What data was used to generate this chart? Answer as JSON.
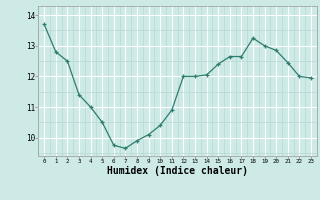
{
  "x": [
    0,
    1,
    2,
    3,
    4,
    5,
    6,
    7,
    8,
    9,
    10,
    11,
    12,
    13,
    14,
    15,
    16,
    17,
    18,
    19,
    20,
    21,
    22,
    23
  ],
  "y": [
    13.7,
    12.8,
    12.5,
    11.4,
    11.0,
    10.5,
    9.75,
    9.65,
    9.9,
    10.1,
    10.4,
    10.9,
    12.0,
    12.0,
    12.05,
    12.4,
    12.65,
    12.65,
    13.25,
    13.0,
    12.85,
    12.45,
    12.0,
    11.95
  ],
  "line_color": "#2e7d6e",
  "bg_color": "#cdeae7",
  "grid_major_color": "#ffffff",
  "grid_minor_color": "#b8d8d5",
  "xlabel": "Humidex (Indice chaleur)",
  "xlabel_fontsize": 7,
  "ylabel_ticks": [
    10,
    11,
    12,
    13,
    14
  ],
  "xlim": [
    -0.5,
    23.5
  ],
  "ylim": [
    9.4,
    14.3
  ]
}
